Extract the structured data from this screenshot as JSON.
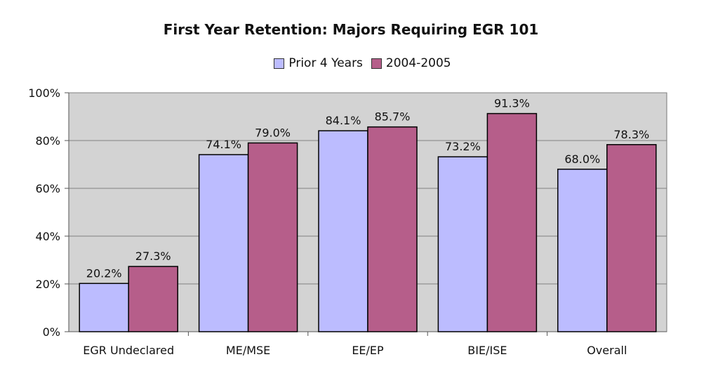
{
  "chart_data": {
    "type": "bar",
    "title": "First Year Retention: Majors Requiring EGR 101",
    "categories": [
      "EGR Undeclared",
      "ME/MSE",
      "EE/EP",
      "BIE/ISE",
      "Overall"
    ],
    "series": [
      {
        "name": "Prior 4 Years",
        "values": [
          20.2,
          74.1,
          84.1,
          73.2,
          68.0
        ],
        "labels": [
          "20.2%",
          "74.1%",
          "84.1%",
          "73.2%",
          "68.0%"
        ],
        "color": "#bcbcff"
      },
      {
        "name": "2004-2005",
        "values": [
          27.3,
          79.0,
          85.7,
          91.3,
          78.3
        ],
        "labels": [
          "27.3%",
          "79.0%",
          "85.7%",
          "91.3%",
          "78.3%"
        ],
        "color": "#b65e8a"
      }
    ],
    "ylim": [
      0,
      100
    ],
    "yticks": [
      "0%",
      "20%",
      "40%",
      "60%",
      "80%",
      "100%"
    ],
    "ytick_values": [
      0,
      20,
      40,
      60,
      80,
      100
    ],
    "grid": true,
    "legend_position": "top",
    "plot_background": "#d3d3d3"
  }
}
